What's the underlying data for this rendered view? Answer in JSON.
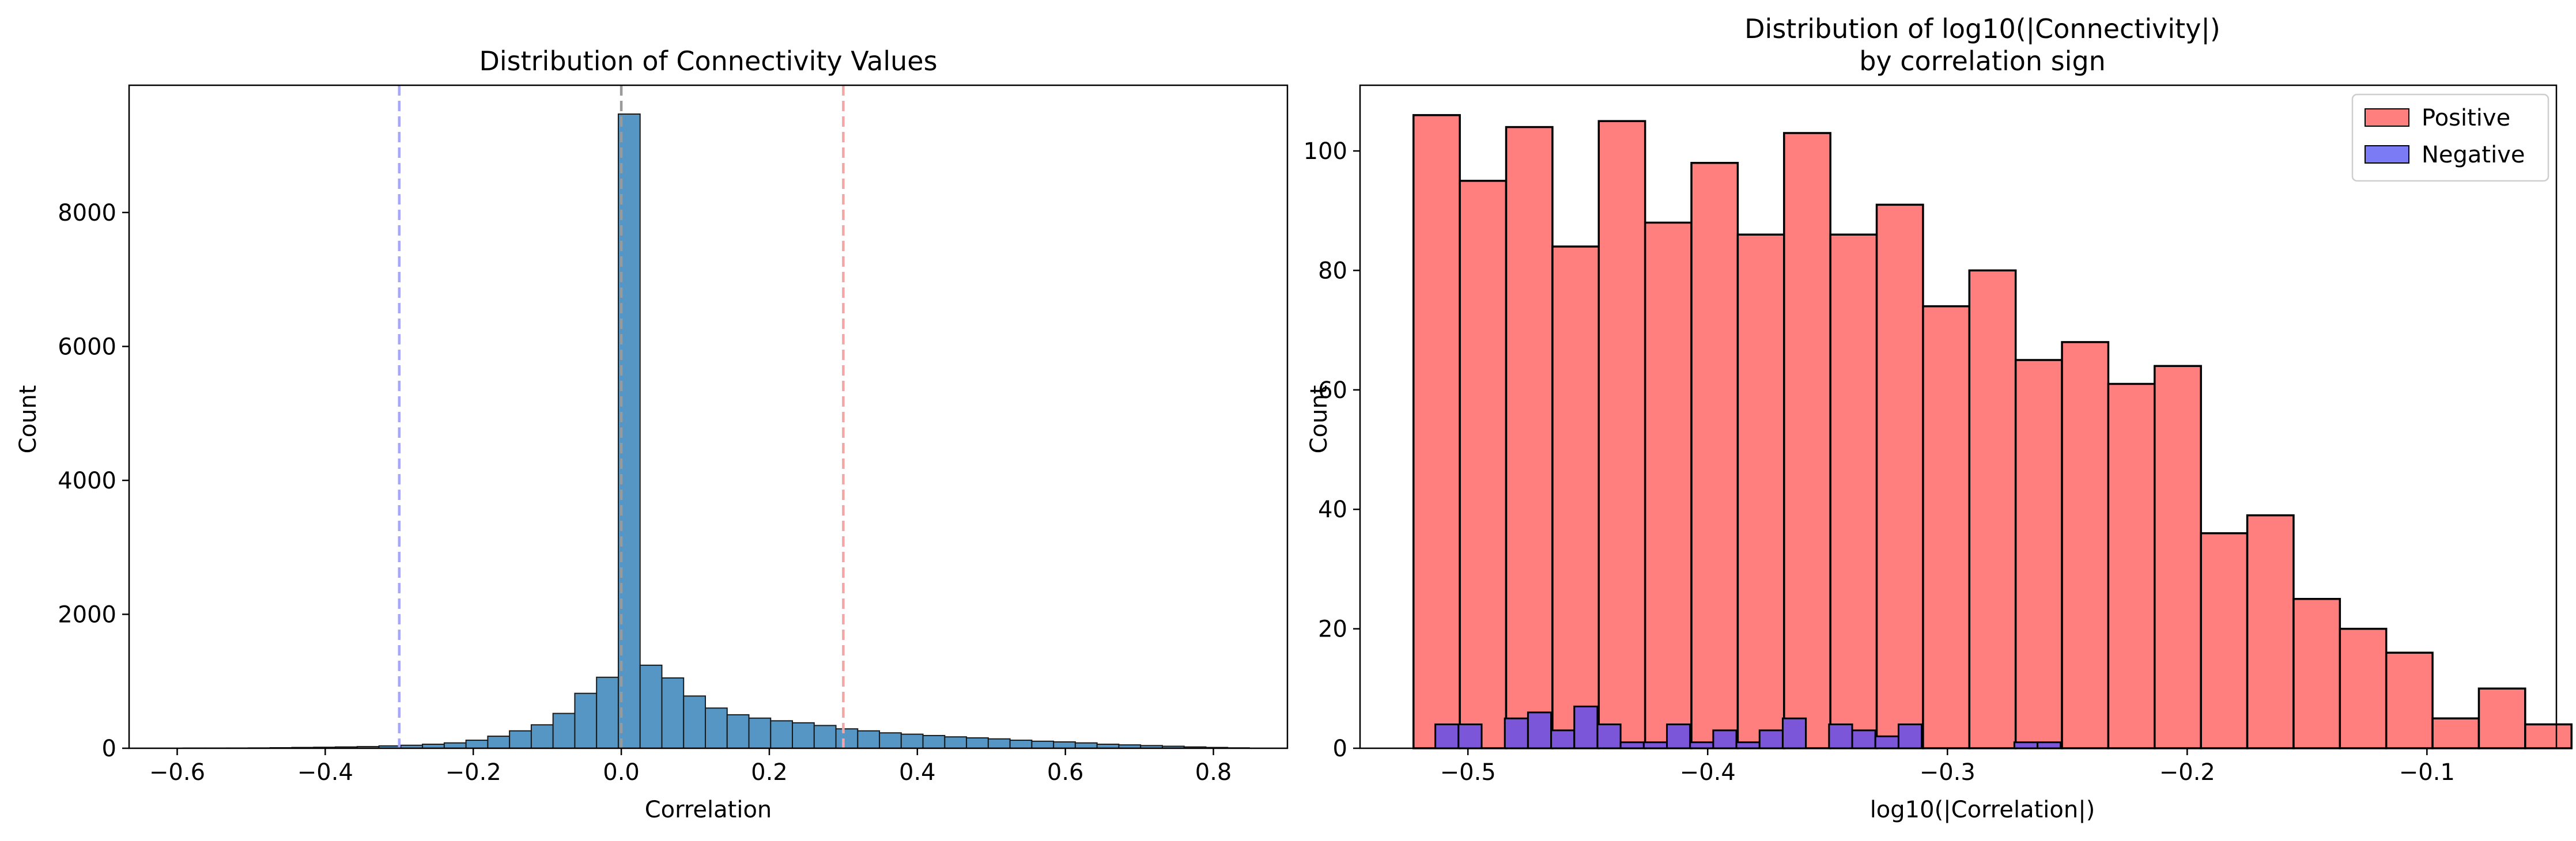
{
  "chart_data": [
    {
      "type": "bar",
      "title": "Distribution of Connectivity Values",
      "xlabel": "Correlation",
      "ylabel": "Count",
      "xlim": [
        -0.665,
        0.9
      ],
      "ylim": [
        0,
        9900
      ],
      "xticks": [
        -0.6,
        -0.4,
        -0.2,
        0.0,
        0.2,
        0.4,
        0.6,
        0.8
      ],
      "xtick_labels": [
        "−0.6",
        "−0.4",
        "−0.2",
        "0.0",
        "0.2",
        "0.4",
        "0.6",
        "0.8"
      ],
      "yticks": [
        0,
        2000,
        4000,
        6000,
        8000
      ],
      "ytick_labels": [
        "0",
        "2000",
        "4000",
        "6000",
        "8000"
      ],
      "grid": false,
      "bin_width": 0.0294,
      "bins_start": [
        -0.592,
        -0.5626,
        -0.5332,
        -0.5038,
        -0.4744,
        -0.445,
        -0.4156,
        -0.3862,
        -0.3568,
        -0.3274,
        -0.298,
        -0.2686,
        -0.2392,
        -0.2098,
        -0.1804,
        -0.151,
        -0.1216,
        -0.0922,
        -0.0628,
        -0.0334,
        -0.004,
        0.0254,
        0.0548,
        0.0842,
        0.1136,
        0.143,
        0.1724,
        0.2018,
        0.2312,
        0.2606,
        0.29,
        0.3194,
        0.3488,
        0.3782,
        0.4076,
        0.437,
        0.4664,
        0.4958,
        0.5252,
        0.5546,
        0.584,
        0.6134,
        0.6428,
        0.6722,
        0.7016,
        0.731,
        0.7604,
        0.7898,
        0.8192
      ],
      "values": [
        2,
        2,
        3,
        5,
        8,
        12,
        15,
        20,
        25,
        35,
        45,
        60,
        80,
        120,
        180,
        260,
        350,
        520,
        820,
        1060,
        9470,
        1240,
        1050,
        780,
        600,
        500,
        450,
        410,
        380,
        340,
        290,
        260,
        230,
        210,
        190,
        170,
        155,
        140,
        120,
        105,
        95,
        80,
        60,
        50,
        40,
        30,
        20,
        12,
        6
      ],
      "bar_color": "#5596c4",
      "reference_lines": [
        {
          "x": -0.3,
          "color": "#a6a6ff"
        },
        {
          "x": 0.0,
          "color": "#9a9a9a"
        },
        {
          "x": 0.3,
          "color": "#f4a6a6"
        }
      ]
    },
    {
      "type": "bar",
      "title": "Distribution of log10(|Connectivity|)",
      "subtitle": "by correlation sign",
      "xlabel": "log10(|Correlation|)",
      "ylabel": "Count",
      "xlim": [
        -0.545,
        -0.046
      ],
      "ylim": [
        0,
        111
      ],
      "xticks": [
        -0.5,
        -0.4,
        -0.3,
        -0.2,
        -0.1
      ],
      "xtick_labels": [
        "−0.5",
        "−0.4",
        "−0.3",
        "−0.2",
        "−0.1"
      ],
      "yticks": [
        0,
        20,
        40,
        60,
        80,
        100
      ],
      "ytick_labels": [
        "0",
        "20",
        "40",
        "60",
        "80",
        "100"
      ],
      "grid": false,
      "legend_position": "top-right",
      "series": [
        {
          "name": "Positive",
          "color": "#ff7f7f",
          "bin_start": -0.5227,
          "bin_width": 0.01932,
          "values": [
            106,
            95,
            104,
            84,
            105,
            88,
            98,
            86,
            103,
            86,
            91,
            74,
            80,
            65,
            68,
            61,
            64,
            36,
            39,
            25,
            20,
            16,
            5,
            10,
            4
          ]
        },
        {
          "name": "Negative",
          "color": "#7b56d8",
          "bin_start": -0.5136,
          "bin_width": 0.00966,
          "values": [
            4,
            4,
            0,
            5,
            6,
            3,
            7,
            4,
            1,
            1,
            4,
            1,
            3,
            1,
            3,
            5,
            0,
            4,
            3,
            2,
            4,
            0,
            0,
            0,
            0,
            1,
            1
          ]
        }
      ]
    }
  ]
}
